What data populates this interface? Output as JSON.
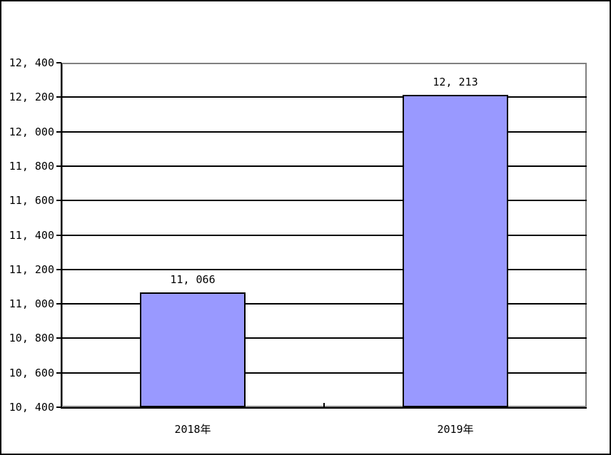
{
  "chart_data": {
    "type": "bar",
    "title": "",
    "xlabel": "",
    "ylabel": "",
    "categories": [
      "2018年",
      "2019年"
    ],
    "values": [
      11066,
      12213
    ],
    "value_labels": [
      "11, 066",
      "12, 213"
    ],
    "ylim": [
      10400,
      12400
    ],
    "ytick_step": 200,
    "ytick_values": [
      10400,
      10600,
      10800,
      11000,
      11200,
      11400,
      11600,
      11800,
      12000,
      12200,
      12400
    ],
    "ytick_labels": [
      "10, 400",
      "10, 600",
      "10, 800",
      "11, 000",
      "11, 200",
      "11, 400",
      "11, 600",
      "11, 800",
      "12, 000",
      "12, 200",
      "12, 400"
    ],
    "grid": "horizontal",
    "legend": "none",
    "colors": {
      "bar_fill": "#9999FF",
      "bar_border": "#000000",
      "axis": "#000000",
      "gridline": "#000000",
      "plot_border": "#808080",
      "background": "#FFFFFF",
      "text": "#000000"
    }
  }
}
